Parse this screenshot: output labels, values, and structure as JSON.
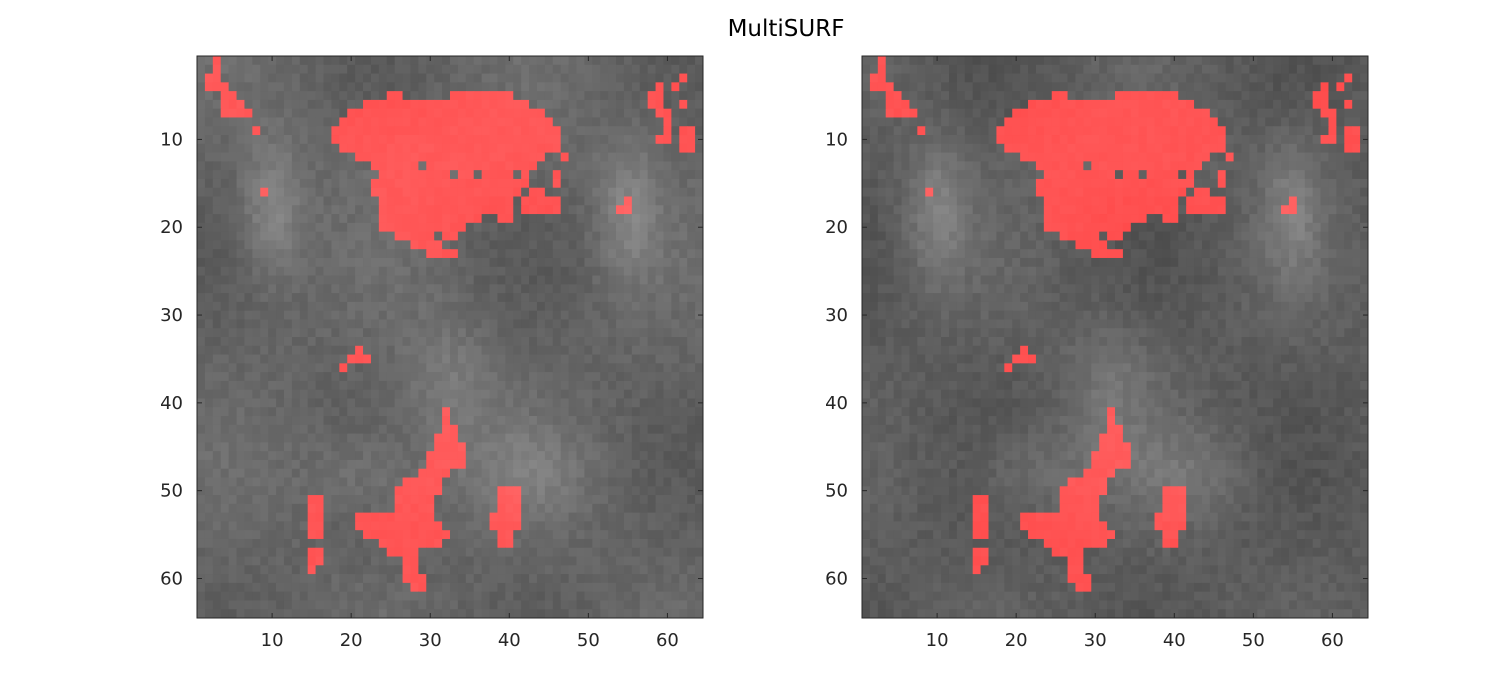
{
  "figure": {
    "title": "MultiSURF"
  },
  "chart_data": [
    {
      "type": "heatmap",
      "title": "",
      "xlabel": "",
      "ylabel": "",
      "x_range": [
        0.5,
        64.5
      ],
      "y_range": [
        0.5,
        64.5
      ],
      "y_reversed": true,
      "x_ticks": [
        10,
        20,
        30,
        40,
        50,
        60
      ],
      "x_tick_labels": [
        "10",
        "20",
        "30",
        "40",
        "50",
        "60"
      ],
      "y_ticks": [
        10,
        20,
        30,
        40,
        50,
        60
      ],
      "y_tick_labels": [
        "10",
        "20",
        "30",
        "40",
        "50",
        "60"
      ],
      "grid": false,
      "background_colormap": "gray",
      "overlay_color": "#ff5a5a",
      "overlay_regions": [
        {
          "name": "top-left-streak",
          "cells": [
            [
              3,
              1
            ],
            [
              3,
              2
            ],
            [
              3,
              3
            ],
            [
              4,
              3
            ],
            [
              4,
              4
            ],
            [
              5,
              4
            ],
            [
              5,
              5
            ],
            [
              6,
              5
            ],
            [
              6,
              6
            ],
            [
              7,
              6
            ],
            [
              7,
              7
            ],
            [
              4,
              7
            ],
            [
              5,
              7
            ],
            [
              6,
              7
            ]
          ]
        },
        {
          "name": "left-isolated",
          "cells": [
            [
              8,
              9
            ],
            [
              9,
              16
            ]
          ]
        },
        {
          "name": "top-right-streak",
          "cells": [
            [
              58,
              5
            ],
            [
              58,
              6
            ],
            [
              59,
              4
            ],
            [
              59,
              5
            ],
            [
              59,
              6
            ],
            [
              59,
              7
            ],
            [
              60,
              7
            ],
            [
              60,
              8
            ],
            [
              60,
              9
            ],
            [
              60,
              10
            ],
            [
              59,
              10
            ],
            [
              61,
              4
            ],
            [
              62,
              3
            ],
            [
              62,
              6
            ],
            [
              62,
              9
            ],
            [
              62,
              10
            ],
            [
              62,
              11
            ],
            [
              63,
              9
            ],
            [
              63,
              10
            ],
            [
              63,
              11
            ]
          ]
        },
        {
          "name": "top-center-cluster",
          "cells": "rows 5-23 x 18-46 (see drawRegion)"
        },
        {
          "name": "right-small",
          "cells": [
            [
              54,
              18
            ],
            [
              55,
              17
            ],
            [
              55,
              18
            ]
          ]
        },
        {
          "name": "mid-left-small",
          "cells": [
            [
              19,
              36
            ],
            [
              20,
              35
            ],
            [
              21,
              34
            ],
            [
              21,
              35
            ],
            [
              22,
              35
            ]
          ]
        },
        {
          "name": "bottom-center-cluster",
          "cells": "rows 41-61 x 20-34"
        },
        {
          "name": "bottom-left-bars",
          "cells": [
            [
              15,
              51
            ],
            [
              15,
              52
            ],
            [
              15,
              53
            ],
            [
              15,
              54
            ],
            [
              15,
              55
            ],
            [
              16,
              51
            ],
            [
              16,
              52
            ],
            [
              16,
              53
            ],
            [
              16,
              54
            ],
            [
              16,
              55
            ],
            [
              15,
              57
            ],
            [
              15,
              58
            ],
            [
              15,
              59
            ],
            [
              16,
              57
            ],
            [
              16,
              58
            ]
          ]
        },
        {
          "name": "bottom-right-blob",
          "cells": "rows 50-56 x 38-41"
        }
      ]
    },
    {
      "type": "heatmap",
      "title": "",
      "xlabel": "",
      "ylabel": "",
      "x_range": [
        0.5,
        64.5
      ],
      "y_range": [
        0.5,
        64.5
      ],
      "y_reversed": true,
      "x_ticks": [
        10,
        20,
        30,
        40,
        50,
        60
      ],
      "x_tick_labels": [
        "10",
        "20",
        "30",
        "40",
        "50",
        "60"
      ],
      "y_ticks": [
        10,
        20,
        30,
        40,
        50,
        60
      ],
      "y_tick_labels": [
        "10",
        "20",
        "30",
        "40",
        "50",
        "60"
      ],
      "grid": false,
      "background_colormap": "gray",
      "overlay_color": "#ff5a5a",
      "overlay_regions": "same mask as panel 1"
    }
  ]
}
